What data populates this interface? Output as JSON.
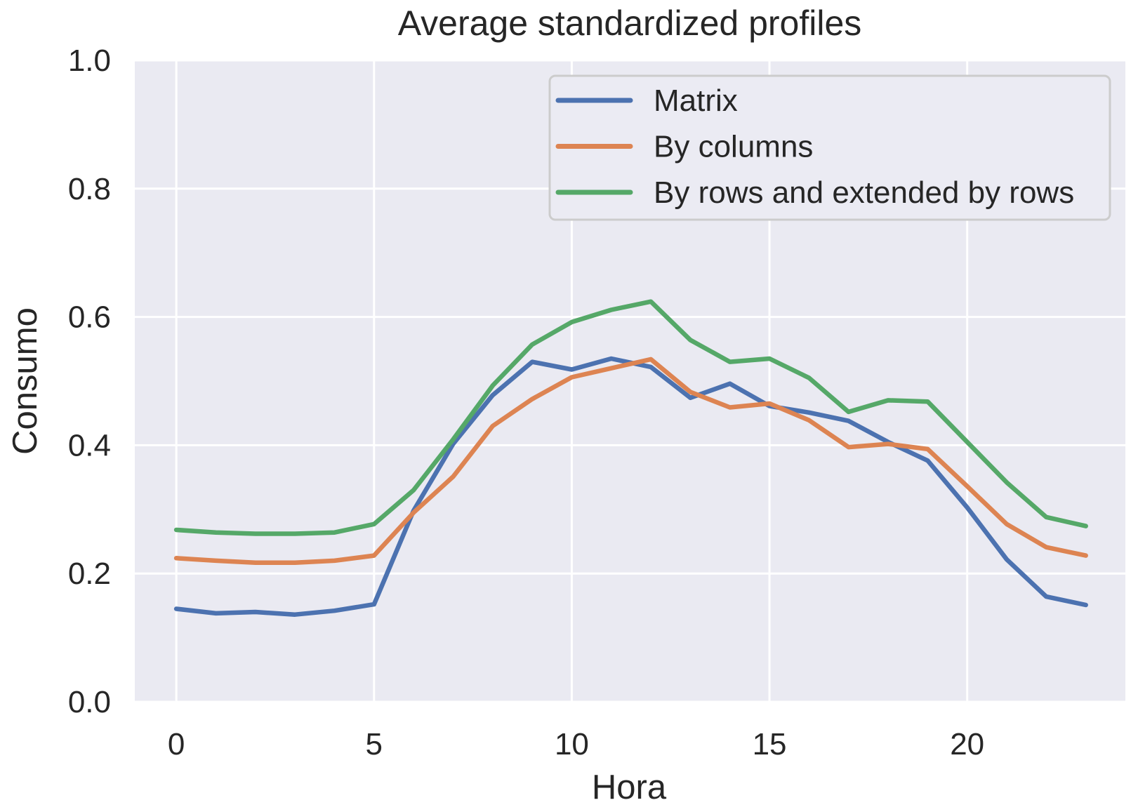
{
  "chart_data": {
    "type": "line",
    "title": "Average standardized profiles",
    "xlabel": "Hora",
    "ylabel": "Consumo",
    "x": [
      0,
      1,
      2,
      3,
      4,
      5,
      6,
      7,
      8,
      9,
      10,
      11,
      12,
      13,
      14,
      15,
      16,
      17,
      18,
      19,
      20,
      21,
      22,
      23
    ],
    "xticks": [
      0,
      5,
      10,
      15,
      20
    ],
    "yticks": [
      "0.0",
      "0.2",
      "0.4",
      "0.6",
      "0.8",
      "1.0"
    ],
    "xlim": [
      -1.05,
      24.0
    ],
    "ylim": [
      0.0,
      1.0
    ],
    "grid": true,
    "legend_position": "upper right",
    "series": [
      {
        "name": "Matrix",
        "color": "#4c72b0",
        "values": [
          0.145,
          0.138,
          0.14,
          0.136,
          0.142,
          0.152,
          0.298,
          0.402,
          0.478,
          0.53,
          0.518,
          0.535,
          0.522,
          0.474,
          0.496,
          0.461,
          0.451,
          0.438,
          0.405,
          0.376,
          0.303,
          0.222,
          0.164,
          0.151
        ]
      },
      {
        "name": "By columns",
        "color": "#dd8452",
        "values": [
          0.224,
          0.22,
          0.217,
          0.217,
          0.22,
          0.228,
          0.295,
          0.351,
          0.43,
          0.472,
          0.506,
          0.52,
          0.534,
          0.483,
          0.459,
          0.465,
          0.439,
          0.397,
          0.402,
          0.394,
          0.336,
          0.277,
          0.241,
          0.228
        ]
      },
      {
        "name": "By rows and extended by rows",
        "color": "#55a868",
        "values": [
          0.268,
          0.264,
          0.262,
          0.262,
          0.264,
          0.277,
          0.33,
          0.409,
          0.493,
          0.557,
          0.592,
          0.611,
          0.624,
          0.564,
          0.53,
          0.535,
          0.505,
          0.452,
          0.47,
          0.468,
          0.405,
          0.342,
          0.288,
          0.274
        ]
      }
    ]
  },
  "style": {
    "plot_background": "#eaeaf2",
    "grid_color": "#ffffff",
    "text_color": "#262626",
    "legend_border": "#cccccc",
    "legend_background": "#ebebf3"
  }
}
